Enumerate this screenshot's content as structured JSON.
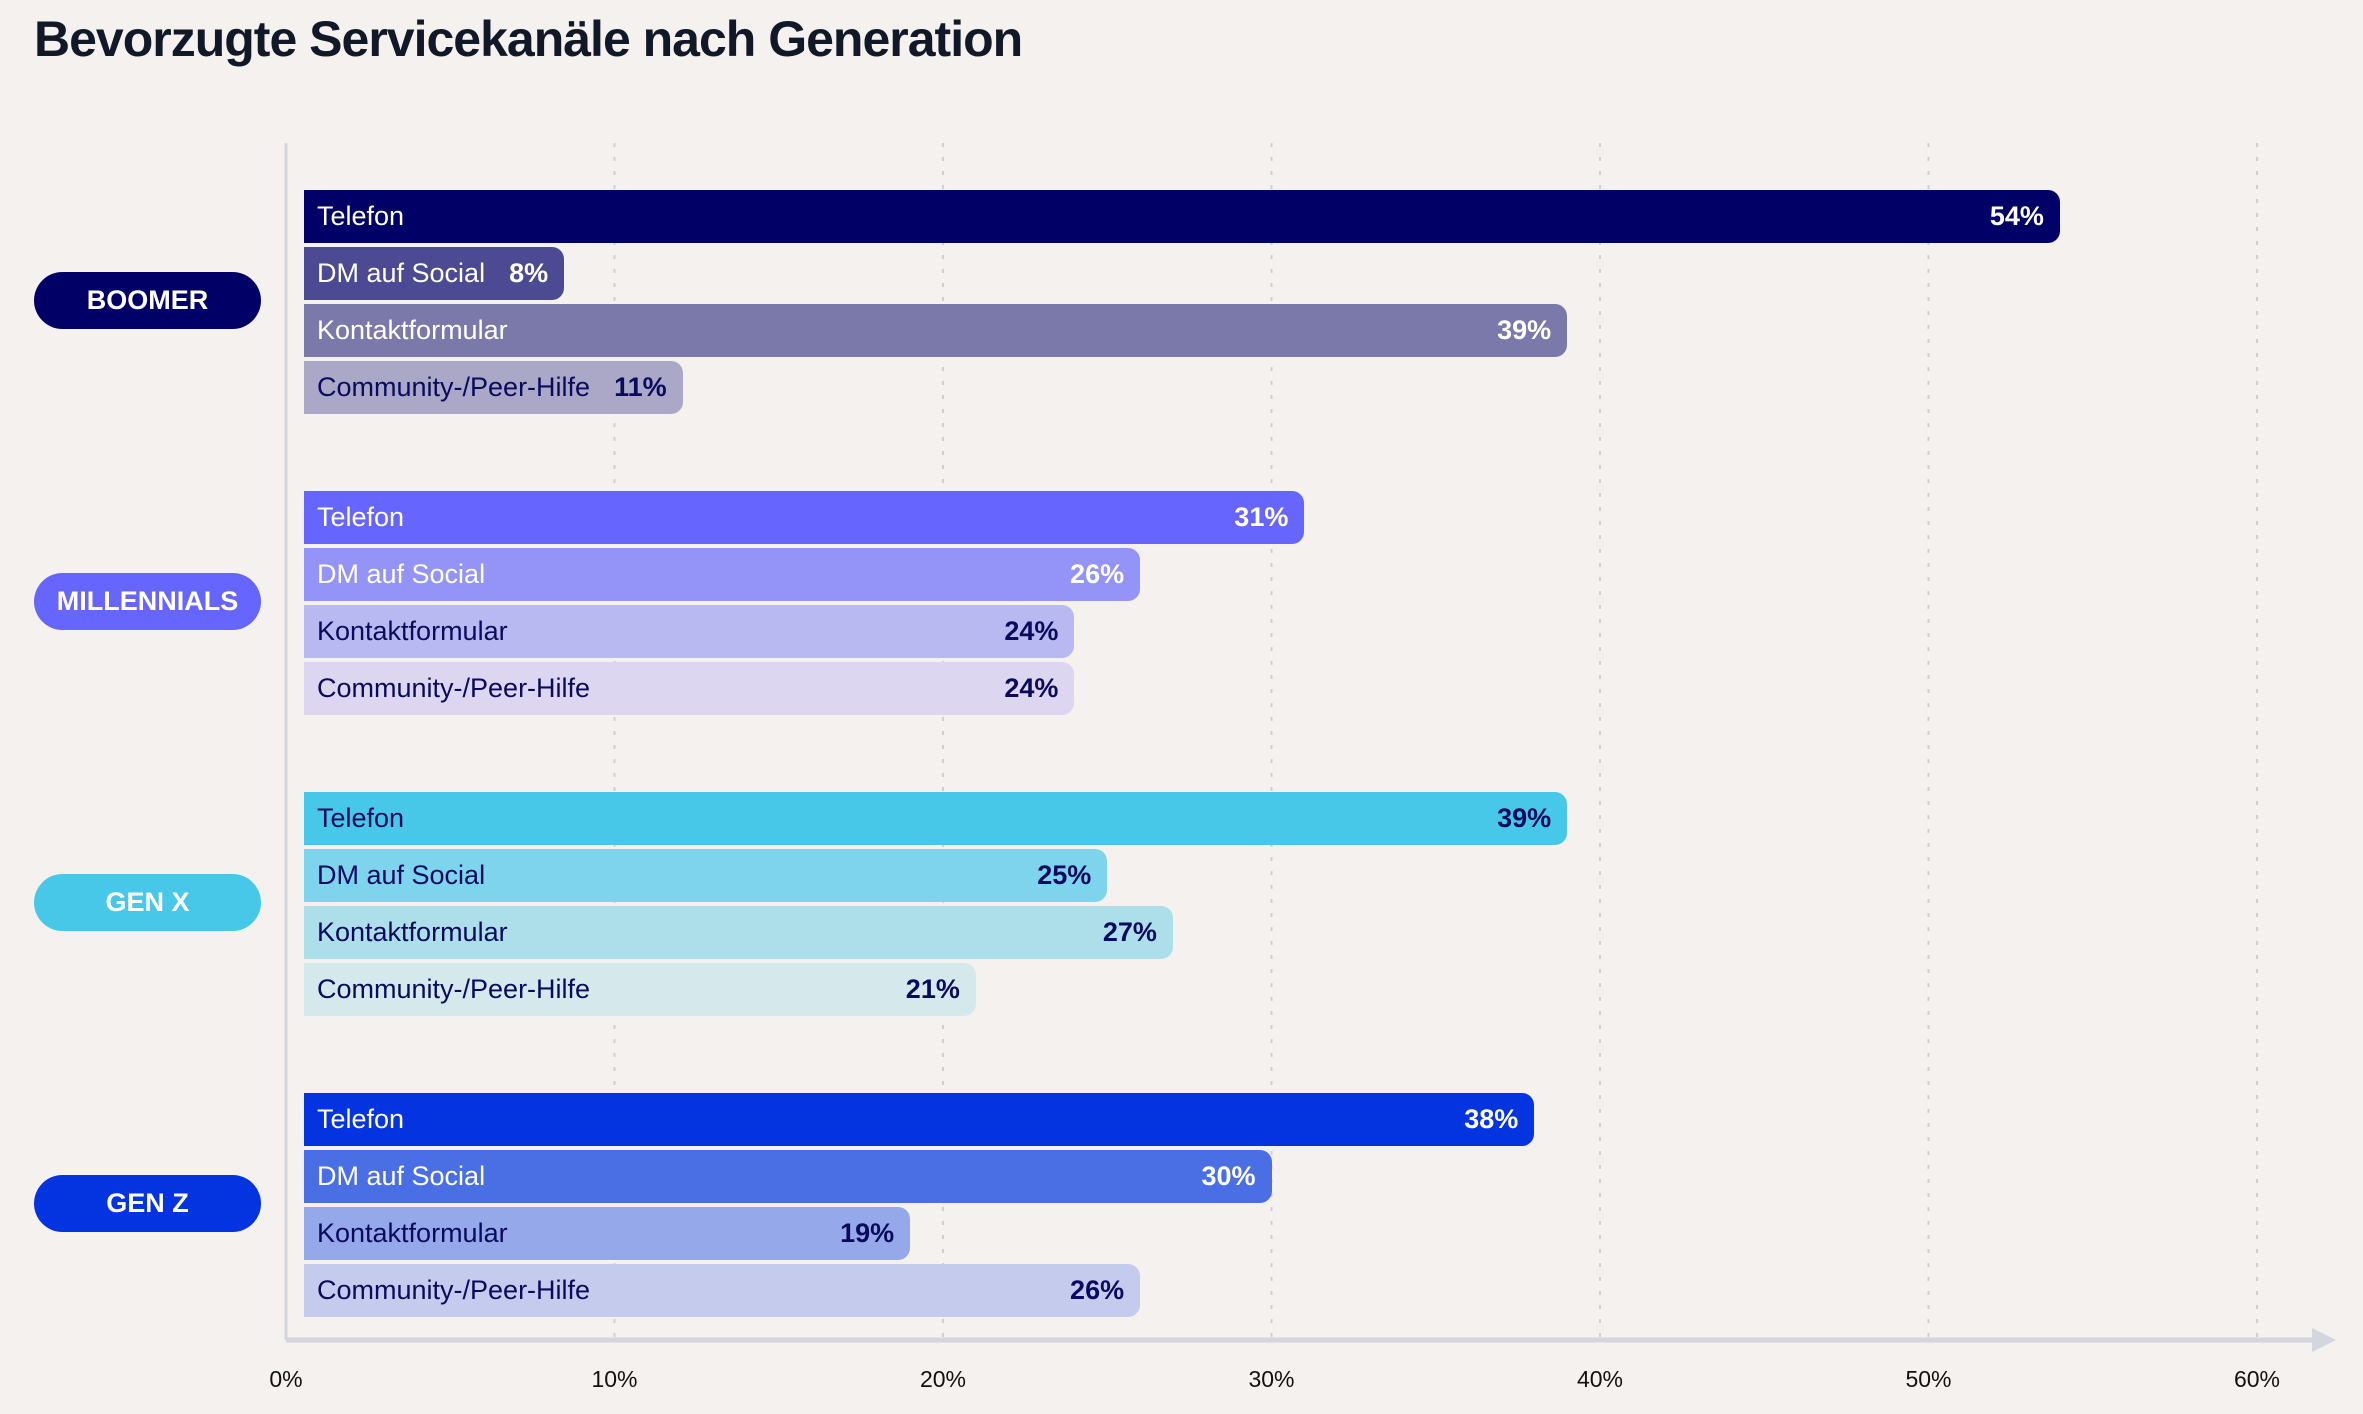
{
  "title": "Bevorzugte Servicekanäle nach Generation",
  "chart_data": {
    "type": "bar",
    "orientation": "horizontal",
    "title": "Bevorzugte Servicekanäle nach Generation",
    "xlim": [
      0,
      60
    ],
    "x_ticks": [
      "0%",
      "10%",
      "20%",
      "30%",
      "40%",
      "50%",
      "60%"
    ],
    "grid": "vertical dotted",
    "groups": [
      {
        "name": "BOOMER",
        "color": "#000066",
        "bars": [
          {
            "label": "Telefon",
            "value": 54,
            "display": "54%",
            "color": "#000066",
            "text": "#ffffff"
          },
          {
            "label": "DM auf Social",
            "value": 8,
            "display": "8%",
            "color": "#4b4a92",
            "text": "#ffffff"
          },
          {
            "label": "Kontaktformular",
            "value": 39,
            "display": "39%",
            "color": "#7a79a9",
            "text": "#ffffff"
          },
          {
            "label": "Community-/Peer-Hilfe",
            "value": 11,
            "display": "11%",
            "color": "#aaa8c6",
            "text": "#0a0a5e"
          }
        ]
      },
      {
        "name": "MILLENNIALS",
        "color": "#6666ff",
        "bars": [
          {
            "label": "Telefon",
            "value": 31,
            "display": "31%",
            "color": "#6666ff",
            "text": "#ffffff"
          },
          {
            "label": "DM auf Social",
            "value": 26,
            "display": "26%",
            "color": "#9393f8",
            "text": "#ffffff"
          },
          {
            "label": "Kontaktformular",
            "value": 24,
            "display": "24%",
            "color": "#b9b9f2",
            "text": "#0a0a5e"
          },
          {
            "label": "Community-/Peer-Hilfe",
            "value": 24,
            "display": "24%",
            "color": "#dcd6f0",
            "text": "#0a0a5e"
          }
        ]
      },
      {
        "name": "GEN X",
        "color": "#48c8e9",
        "bars": [
          {
            "label": "Telefon",
            "value": 39,
            "display": "39%",
            "color": "#48c8e9",
            "text": "#0a0a5e"
          },
          {
            "label": "DM auf Social",
            "value": 25,
            "display": "25%",
            "color": "#7dd4ec",
            "text": "#0a0a5e"
          },
          {
            "label": "Kontaktformular",
            "value": 27,
            "display": "27%",
            "color": "#acdfea",
            "text": "#0a0a5e"
          },
          {
            "label": "Community-/Peer-Hilfe",
            "value": 21,
            "display": "21%",
            "color": "#d5e9ed",
            "text": "#0a0a5e"
          }
        ]
      },
      {
        "name": "GEN Z",
        "color": "#0433e0",
        "bars": [
          {
            "label": "Telefon",
            "value": 38,
            "display": "38%",
            "color": "#0433e0",
            "text": "#ffffff"
          },
          {
            "label": "DM auf Social",
            "value": 30,
            "display": "30%",
            "color": "#4a6fe5",
            "text": "#ffffff"
          },
          {
            "label": "Kontaktformular",
            "value": 19,
            "display": "19%",
            "color": "#95a8ea",
            "text": "#0a0a5e"
          },
          {
            "label": "Community-/Peer-Hilfe",
            "value": 26,
            "display": "26%",
            "color": "#c5cbec",
            "text": "#0a0a5e"
          }
        ]
      }
    ]
  }
}
